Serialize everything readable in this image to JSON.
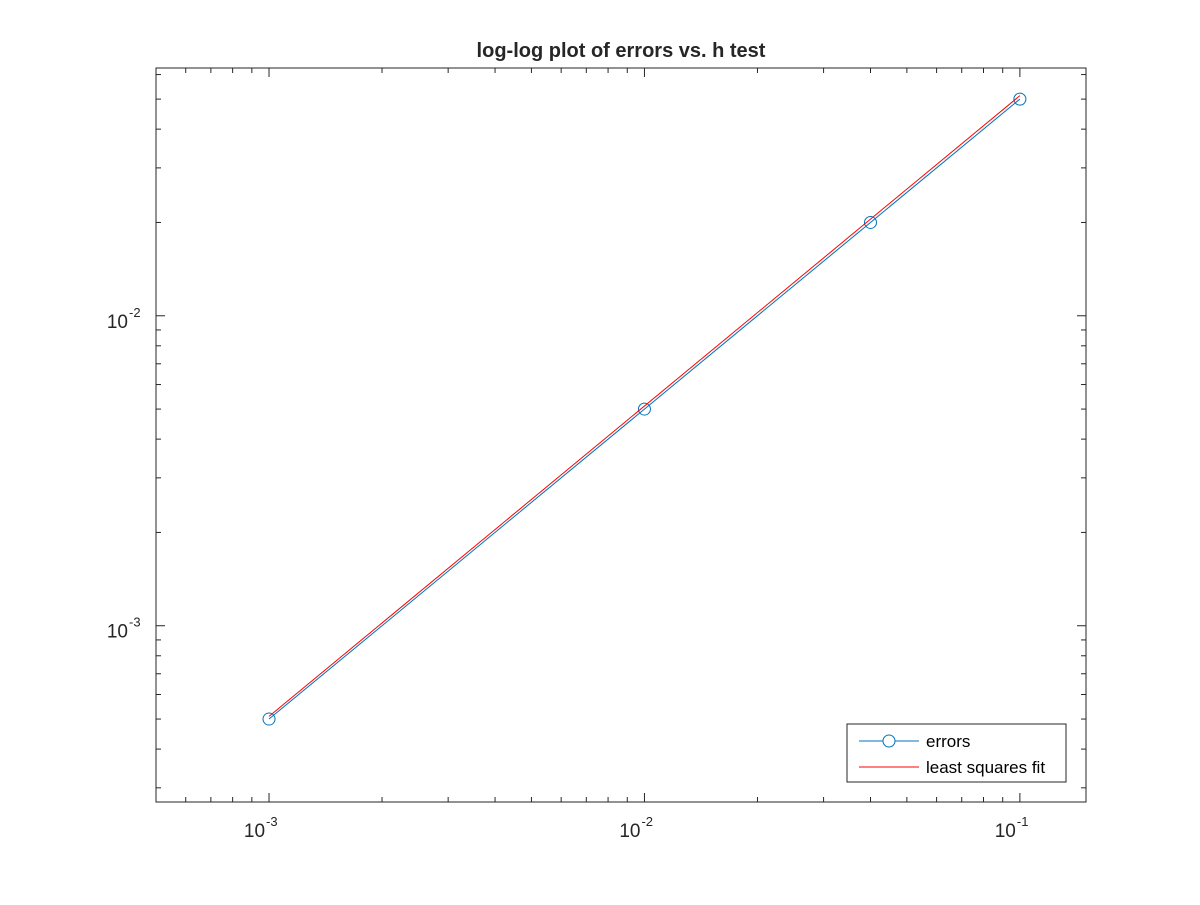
{
  "chart_data": {
    "type": "line",
    "title": "log-log plot of errors vs. h test",
    "xlabel": "",
    "ylabel": "",
    "xscale": "log",
    "yscale": "log",
    "xlim": [
      0.0005,
      0.15
    ],
    "ylim": [
      0.00027,
      0.063
    ],
    "grid": false,
    "legend_location": "bottom-right",
    "x_ticks": [
      {
        "base": "10",
        "exp": "-3",
        "value": 0.001
      },
      {
        "base": "10",
        "exp": "-2",
        "value": 0.01
      },
      {
        "base": "10",
        "exp": "-1",
        "value": 0.1
      }
    ],
    "y_ticks": [
      {
        "base": "10",
        "exp": "-3",
        "value": 0.001
      },
      {
        "base": "10",
        "exp": "-2",
        "value": 0.01
      }
    ],
    "series": [
      {
        "name": "errors",
        "color": "#0072BD",
        "marker": "circle",
        "x": [
          0.001,
          0.01,
          0.04,
          0.1
        ],
        "y": [
          0.0005,
          0.005,
          0.02,
          0.05
        ]
      },
      {
        "name": "least squares fit",
        "color": "#FF0000",
        "marker": "none",
        "x": [
          0.001,
          0.1
        ],
        "y": [
          0.00051,
          0.0513
        ]
      }
    ]
  }
}
